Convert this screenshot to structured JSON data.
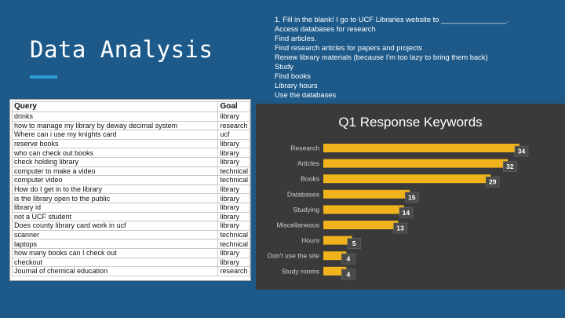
{
  "slide": {
    "title": "Data Analysis"
  },
  "notes": [
    "1. Fill in the blank! I go to UCF Libraries website to ________________.",
    "Access databases for research",
    "Find articles.",
    "Find research articles for papers and projects",
    "Renew library materials (because I'm too lazy to bring them back)",
    "Study",
    "Find books",
    "Library hours",
    "Use the databases"
  ],
  "sheet": {
    "headers": [
      "Query",
      "Goal"
    ],
    "rows": [
      [
        "drinks",
        "library"
      ],
      [
        "how to manage my library by deway decimal system",
        "research"
      ],
      [
        "Where can i use my knights card",
        "ucf"
      ],
      [
        "reserve books",
        "library"
      ],
      [
        "who can check out books",
        "library"
      ],
      [
        "check holding library",
        "library"
      ],
      [
        "computer to make a video",
        "technical"
      ],
      [
        "computer video",
        "technical"
      ],
      [
        "How do I get in to the library",
        "library"
      ],
      [
        "is the library open to the public",
        "library"
      ],
      [
        "library id",
        "library"
      ],
      [
        "not a UCF student",
        "library"
      ],
      [
        "Does county library card work in ucf",
        "library"
      ],
      [
        "scanner",
        "technical"
      ],
      [
        "laptops",
        "technical"
      ],
      [
        "how many books can I check out",
        "library"
      ],
      [
        "checkout",
        "library"
      ],
      [
        "Journal of chemical education",
        "research"
      ]
    ]
  },
  "chart_data": {
    "type": "bar",
    "orientation": "horizontal",
    "title": "Q1 Response Keywords",
    "categories": [
      "Research",
      "Articles",
      "Books",
      "Databases",
      "Studying",
      "Miscellaneous",
      "Hours",
      "Don't use the site",
      "Study rooms"
    ],
    "values": [
      34,
      32,
      29,
      15,
      14,
      13,
      5,
      4,
      4
    ],
    "xlim": [
      0,
      34
    ],
    "bar_color": "#f0b31c",
    "background": "#3a3a3a",
    "grid": false,
    "legend": "none"
  }
}
